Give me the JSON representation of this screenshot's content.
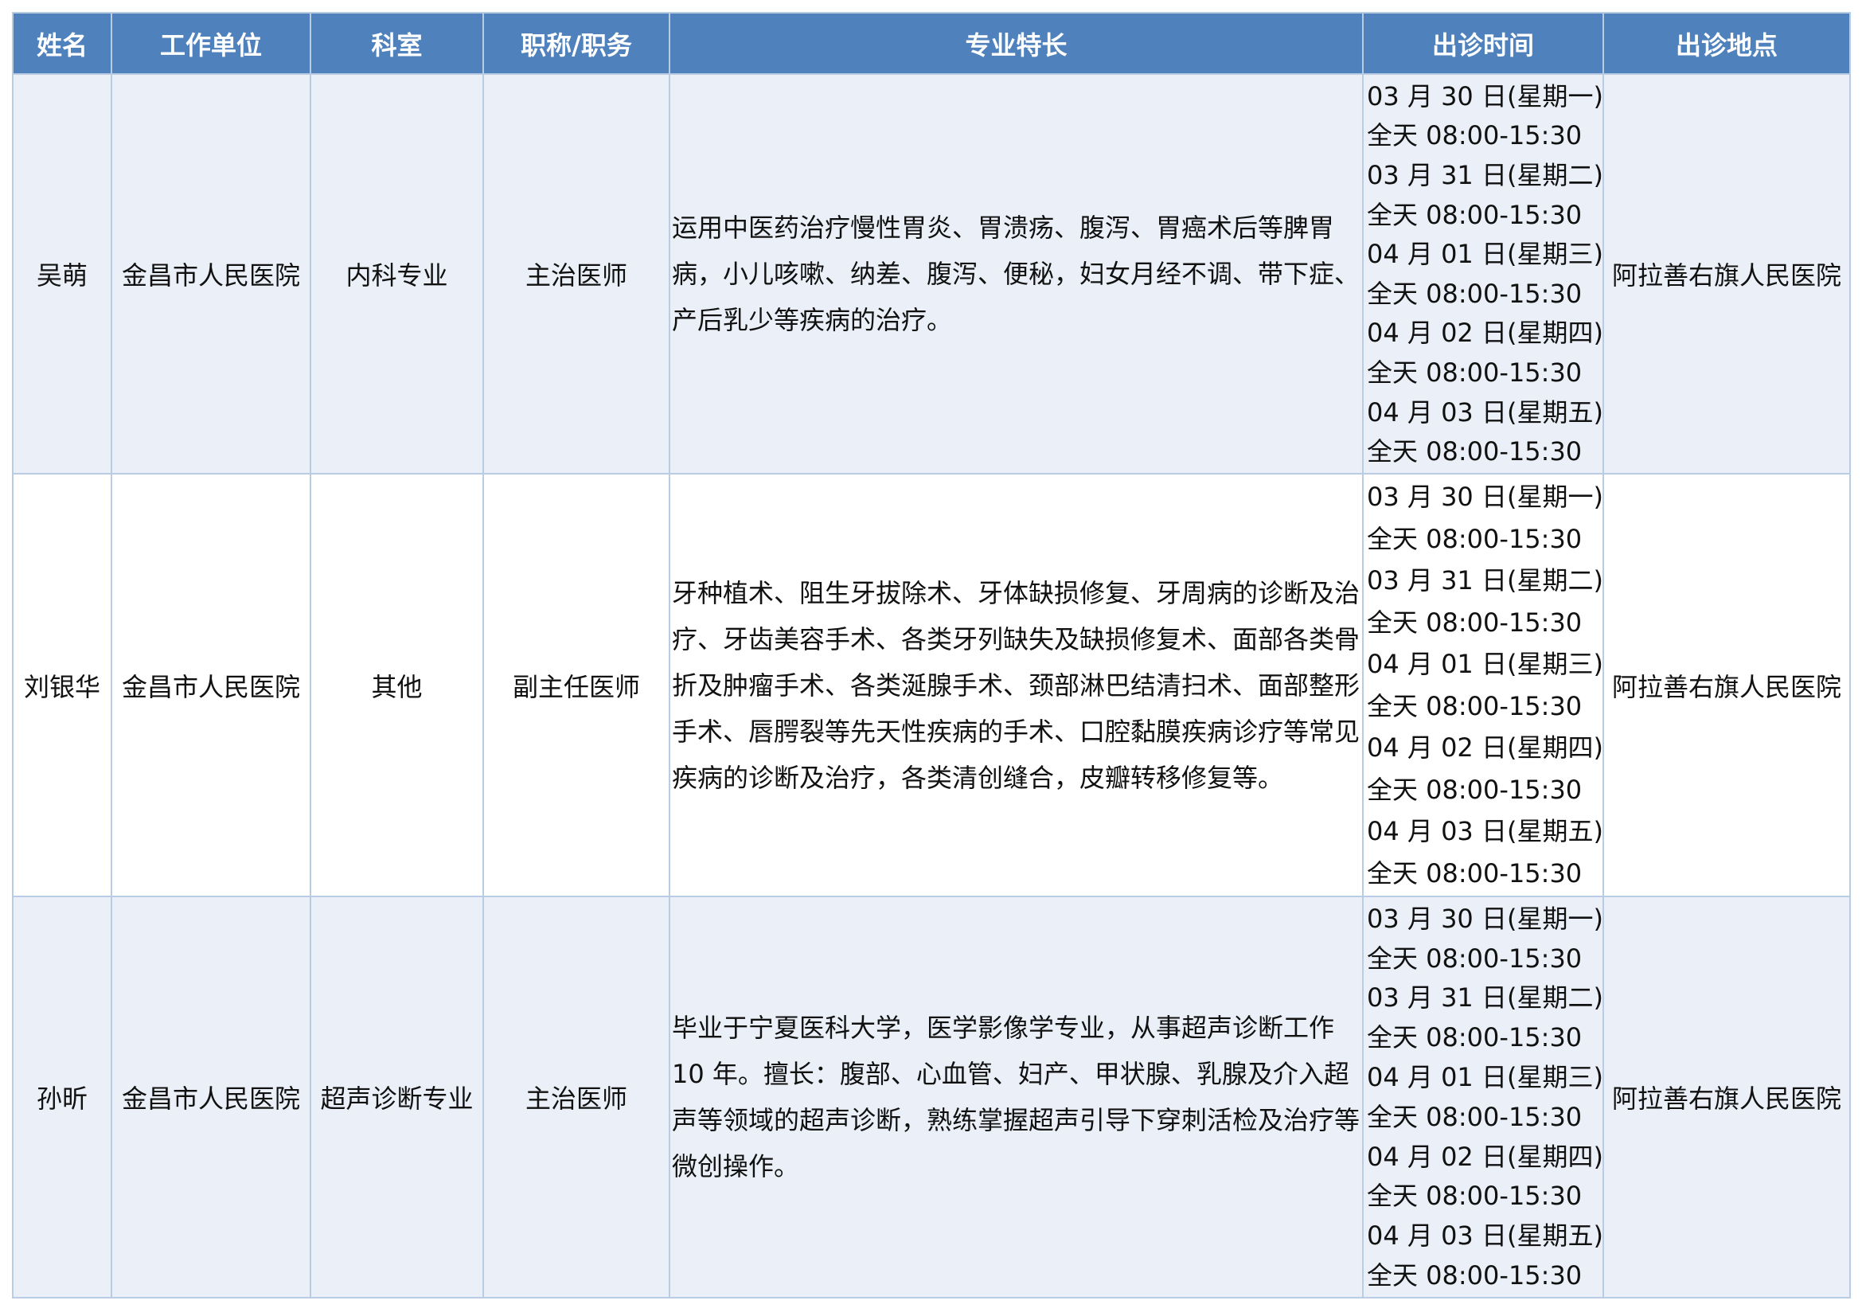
{
  "colors": {
    "header_bg": "#4f81bd",
    "row_alt_bg": "#ebf0f8",
    "border": "#b8cce4"
  },
  "headers": [
    "姓名",
    "工作单位",
    "科室",
    "职称/职务",
    "专业特长",
    "出诊时间",
    "出诊地点"
  ],
  "rows": [
    {
      "name": "吴萌",
      "unit": "金昌市人民医院",
      "dept": "内科专业",
      "title": "主治医师",
      "specialty": "运用中医药治疗慢性胃炎、胃溃疡、腹泻、胃癌术后等脾胃病，小儿咳嗽、纳差、腹泻、便秘，妇女月经不调、带下症、产后乳少等疾病的治疗。",
      "schedule": [
        "03 月 30 日(星期一)",
        "全天 08:00-15:30",
        "03 月 31 日(星期二)",
        "全天 08:00-15:30",
        "04 月 01 日(星期三)",
        "全天 08:00-15:30",
        "04 月 02 日(星期四)",
        "全天 08:00-15:30",
        "04 月 03 日(星期五)",
        "全天 08:00-15:30"
      ],
      "location": "阿拉善右旗人民医院"
    },
    {
      "name": "刘银华",
      "unit": "金昌市人民医院",
      "dept": "其他",
      "title": "副主任医师",
      "specialty": "牙种植术、阻生牙拔除术、牙体缺损修复、牙周病的诊断及治疗、牙齿美容手术、各类牙列缺失及缺损修复术、面部各类骨折及肿瘤手术、各类涎腺手术、颈部淋巴结清扫术、面部整形手术、唇腭裂等先天性疾病的手术、口腔黏膜疾病诊疗等常见疾病的诊断及治疗，各类清创缝合，皮瓣转移修复等。",
      "schedule": [
        "03 月 30 日(星期一)",
        "全天 08:00-15:30",
        "03 月 31 日(星期二)",
        "全天 08:00-15:30",
        "04 月 01 日(星期三)",
        "全天 08:00-15:30",
        "04 月 02 日(星期四)",
        "全天 08:00-15:30",
        "04 月 03 日(星期五)",
        "全天 08:00-15:30"
      ],
      "location": "阿拉善右旗人民医院"
    },
    {
      "name": "孙昕",
      "unit": "金昌市人民医院",
      "dept": "超声诊断专业",
      "title": "主治医师",
      "specialty": "毕业于宁夏医科大学，医学影像学专业，从事超声诊断工作 10 年。擅长：腹部、心血管、妇产、甲状腺、乳腺及介入超声等领域的超声诊断，熟练掌握超声引导下穿刺活检及治疗等微创操作。",
      "schedule": [
        "03 月 30 日(星期一)",
        "全天 08:00-15:30",
        "03 月 31 日(星期二)",
        "全天 08:00-15:30",
        "04 月 01 日(星期三)",
        "全天 08:00-15:30",
        "04 月 02 日(星期四)",
        "全天 08:00-15:30",
        "04 月 03 日(星期五)",
        "全天 08:00-15:30"
      ],
      "location": "阿拉善右旗人民医院"
    }
  ]
}
